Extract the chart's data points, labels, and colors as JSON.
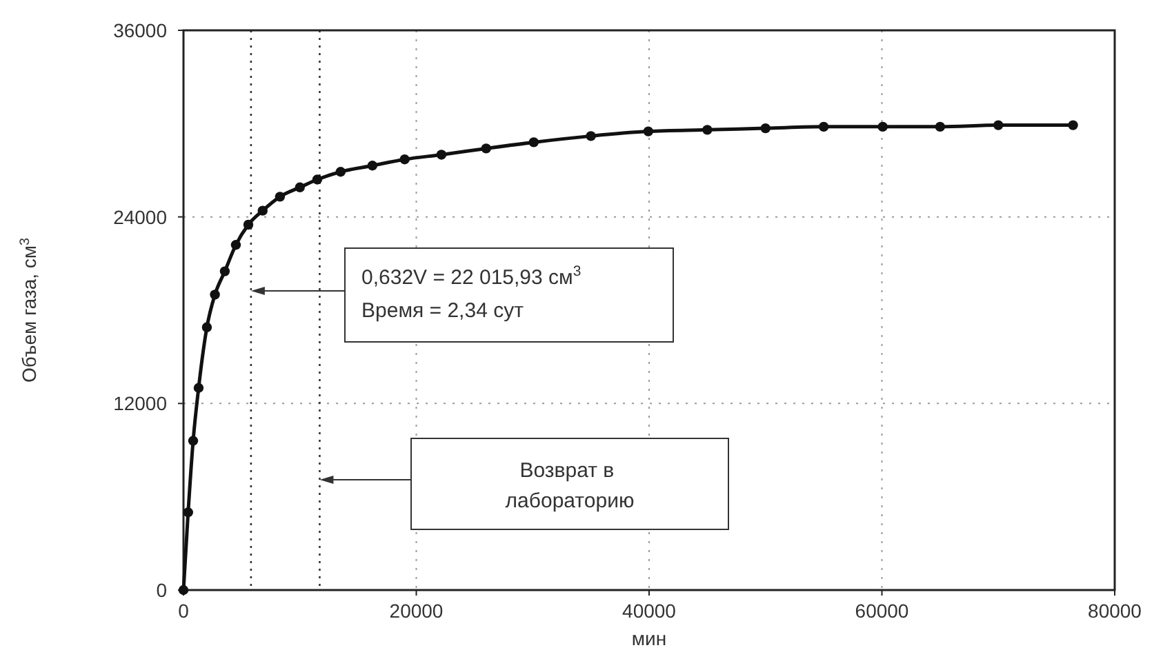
{
  "chart_data": {
    "type": "line",
    "xlabel": "мин",
    "ylabel": "Объем газа, см$^{3}$",
    "x": [
      0,
      400,
      830,
      1300,
      2010,
      2700,
      3550,
      4500,
      5570,
      6800,
      8290,
      10000,
      11490,
      13500,
      16230,
      19000,
      22160,
      26000,
      30090,
      35000,
      39930,
      45000,
      50000,
      55000,
      60070,
      65000,
      70000,
      76420
    ],
    "series": [
      {
        "color": "#111111",
        "values": [
          0,
          5000,
          9600,
          13000,
          16900,
          19000,
          20500,
          22200,
          23500,
          24400,
          25300,
          25900,
          26400,
          26900,
          27300,
          27700,
          28000,
          28400,
          28800,
          29200,
          29500,
          29600,
          29700,
          29800,
          29800,
          29800,
          29900,
          29900
        ]
      }
    ],
    "xlim": [
      0,
      80000
    ],
    "ylim": [
      0,
      36000
    ],
    "xticks": [
      0,
      20000,
      40000,
      60000,
      80000
    ],
    "yticks": [
      0,
      12000,
      24000,
      36000
    ],
    "grid": true,
    "marker": "circle",
    "line_style": "solid",
    "ref_lines": [
      {
        "axis": "x",
        "value": 5800,
        "line_style": "dotted"
      },
      {
        "axis": "x",
        "value": 11700,
        "line_style": "dotted"
      }
    ],
    "annotations": [
      "0,632V = 22 015,93 см$^{3}$",
      "Время = 2,34 сут",
      "Возврат в лабораторию"
    ]
  }
}
